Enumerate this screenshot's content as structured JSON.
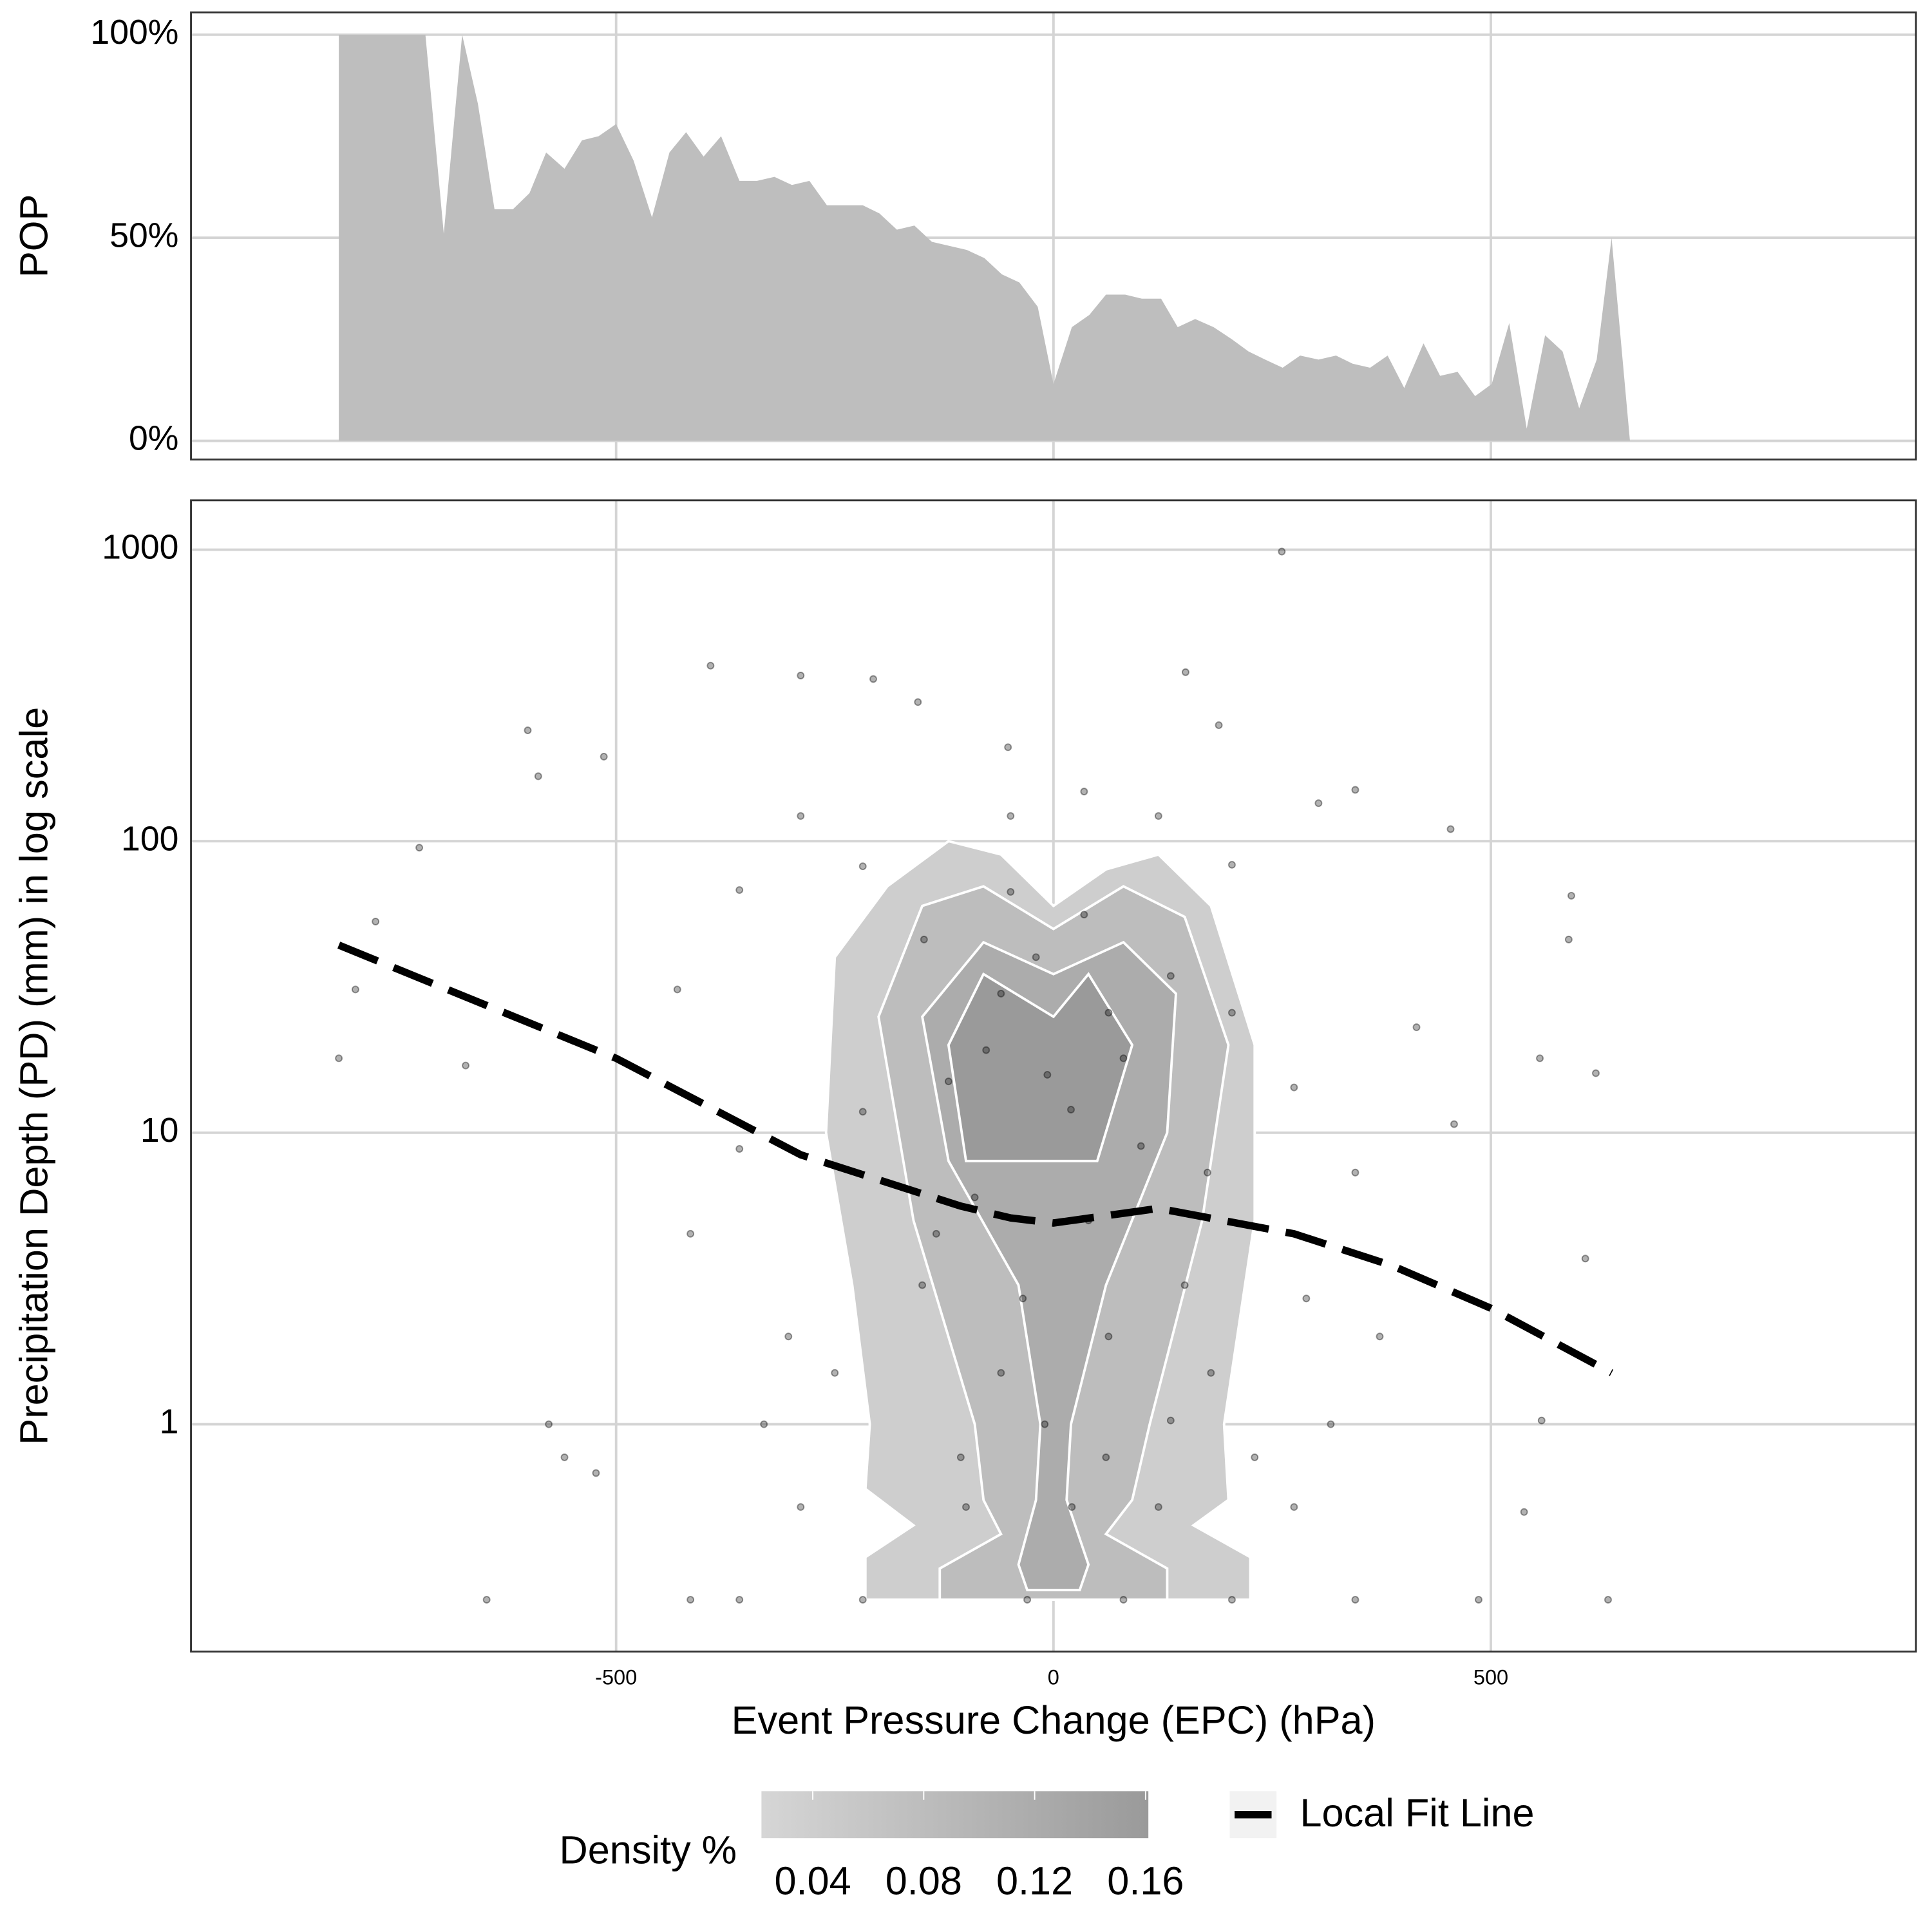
{
  "chart_data": [
    {
      "type": "area",
      "ylabel": "POP",
      "color": "#bebebe",
      "grid": true,
      "xlim": [
        -986,
        986
      ],
      "ylim": [
        -4.6,
        105.5
      ],
      "yticks": [
        {
          "value": 0,
          "label": "0%"
        },
        {
          "value": 50,
          "label": "50%"
        },
        {
          "value": 100,
          "label": "100%"
        }
      ],
      "x": [
        -817,
        -718,
        -697,
        -676,
        -658,
        -639,
        -618,
        -599,
        -580,
        -559,
        -539,
        -520,
        -500,
        -480,
        -459,
        -439,
        -420,
        -400,
        -380,
        -359,
        -339,
        -319,
        -299,
        -279,
        -259,
        -218,
        -199,
        -179,
        -159,
        -139,
        -99,
        -79,
        -59,
        -39,
        -18,
        0,
        21,
        41,
        60,
        82,
        101,
        123,
        142,
        162,
        183,
        204,
        223,
        242,
        262,
        282,
        303,
        323,
        342,
        362,
        382,
        401,
        423,
        442,
        462,
        482,
        501,
        521,
        541,
        562,
        582,
        601,
        621,
        638,
        659
      ],
      "values": [
        100,
        100,
        51,
        100,
        83,
        57,
        57,
        61,
        71,
        67,
        74,
        75,
        78,
        69,
        55,
        71,
        76,
        70,
        75,
        64,
        64,
        65,
        63,
        64,
        58,
        58,
        56,
        52,
        53,
        49,
        47,
        45,
        41,
        39,
        33,
        14,
        28,
        31,
        36,
        36,
        35,
        35,
        28,
        30,
        28,
        25,
        22,
        20,
        18,
        21,
        20,
        21,
        19,
        18,
        21,
        13,
        24,
        16,
        17,
        11,
        14,
        29,
        3,
        26,
        22,
        8,
        20,
        50,
        0
      ]
    },
    {
      "type": "scatter",
      "xlabel": "Event Pressure Change (EPC) (hPa)",
      "ylabel": "Precipitation Depth (PD) (mm) in log scale",
      "color": "#000000",
      "log_y": true,
      "grid": true,
      "legend_position": "bottom",
      "xlim": [
        -986,
        986
      ],
      "ylim": [
        0.166,
        1477
      ],
      "xticks": [
        -500,
        0,
        500
      ],
      "yticks": [
        1,
        10,
        100,
        1000
      ],
      "x": [
        -817,
        -798,
        -725,
        -775,
        -672,
        -648,
        -601,
        -589,
        -577,
        -559,
        -514,
        -523,
        -392,
        -289,
        -206,
        -155,
        -52,
        151,
        189,
        261,
        454,
        592,
        589,
        556,
        620,
        608,
        558,
        538,
        634,
        345,
        415,
        458,
        373,
        -415,
        -359,
        -218,
        120,
        204,
        -77,
        -7,
        63,
        -148,
        -49,
        35,
        134,
        -218,
        176,
        -134,
        -35,
        63,
        134,
        -106,
        21,
        -218,
        -359,
        204,
        345,
        -415,
        486,
        -289,
        275,
        -331,
        317,
        -303,
        289,
        -359,
        275,
        345,
        -430,
        204,
        -289,
        303,
        -49,
        35,
        -60,
        20,
        -20,
        80,
        -120,
        100,
        -90,
        40,
        -150,
        150,
        -10,
        60,
        -60,
        180,
        -250,
        230,
        -100,
        120,
        -30,
        80
      ],
      "values": [
        18,
        31,
        95,
        53,
        17,
        0.25,
        240,
        167,
        1,
        0.77,
        195,
        0.68,
        400,
        370,
        360,
        300,
        210,
        380,
        250,
        985,
        110,
        65,
        46,
        18,
        16,
        3.7,
        1.03,
        0.5,
        0.25,
        150,
        23,
        10.7,
        2,
        4.5,
        68,
        82,
        122,
        83,
        19.2,
        15.8,
        25.8,
        46,
        67,
        56,
        34.5,
        11.8,
        7.3,
        4.5,
        2.7,
        2,
        1.03,
        0.77,
        0.52,
        0.25,
        0.25,
        0.25,
        0.25,
        0.25,
        0.25,
        0.52,
        0.52,
        1,
        1,
        2,
        2.7,
        8.8,
        14.3,
        7.3,
        31,
        25.8,
        122,
        135,
        122,
        148,
        30,
        12,
        40,
        18,
        15,
        9,
        6,
        5,
        3,
        3,
        1,
        0.77,
        1.5,
        1.5,
        1.5,
        0.77,
        0.52,
        0.52,
        0.25,
        0.25
      ],
      "density": [
        {
          "level": 0.04,
          "x": [
            -215,
            225,
            225,
            160,
            200,
            195,
            230,
            230,
            180,
            120,
            60,
            0,
            -60,
            -120,
            -190,
            -250,
            -260,
            -230,
            -210,
            -215,
            -160,
            -215
          ],
          "y": [
            0.25,
            0.25,
            0.35,
            0.45,
            0.55,
            1,
            5,
            20,
            60,
            90,
            80,
            60,
            90,
            100,
            70,
            40,
            10,
            3,
            1,
            0.6,
            0.45,
            0.35
          ]
        },
        {
          "level": 0.08,
          "x": [
            -130,
            130,
            130,
            60,
            90,
            110,
            170,
            200,
            150,
            80,
            0,
            -80,
            -150,
            -200,
            -160,
            -90,
            -80,
            -60,
            -130
          ],
          "y": [
            0.25,
            0.25,
            0.32,
            0.42,
            0.55,
            1,
            5,
            20,
            55,
            70,
            50,
            70,
            60,
            25,
            5,
            1,
            0.55,
            0.42,
            0.32
          ]
        },
        {
          "level": 0.12,
          "x": [
            -30,
            30,
            40,
            15,
            20,
            60,
            130,
            140,
            80,
            0,
            -80,
            -150,
            -120,
            -40,
            -15,
            -20,
            -40
          ],
          "y": [
            0.27,
            0.27,
            0.33,
            0.55,
            1,
            3,
            10,
            30,
            45,
            35,
            45,
            25,
            8,
            3,
            1,
            0.55,
            0.33
          ]
        },
        {
          "level": 0.16,
          "x": [
            -100,
            50,
            90,
            40,
            0,
            -80,
            -120
          ],
          "y": [
            8,
            8,
            20,
            35,
            25,
            35,
            20
          ]
        }
      ],
      "fit": {
        "name": "Local Fit Line",
        "color": "#000000",
        "x": [
          -817,
          -500,
          -289,
          -106,
          -49,
          0,
          120,
          275,
          387,
          500,
          638
        ],
        "values": [
          44,
          18,
          8.4,
          5.6,
          5.1,
          4.9,
          5.5,
          4.5,
          3.5,
          2.5,
          1.5
        ]
      },
      "colorbar": {
        "title": "Density %",
        "lim": [
          0.0215,
          0.161
        ],
        "ticks": [
          0.04,
          0.08,
          0.12,
          0.16
        ],
        "colors": [
          "#d6d6d6",
          "#9a9a9a"
        ]
      }
    }
  ]
}
